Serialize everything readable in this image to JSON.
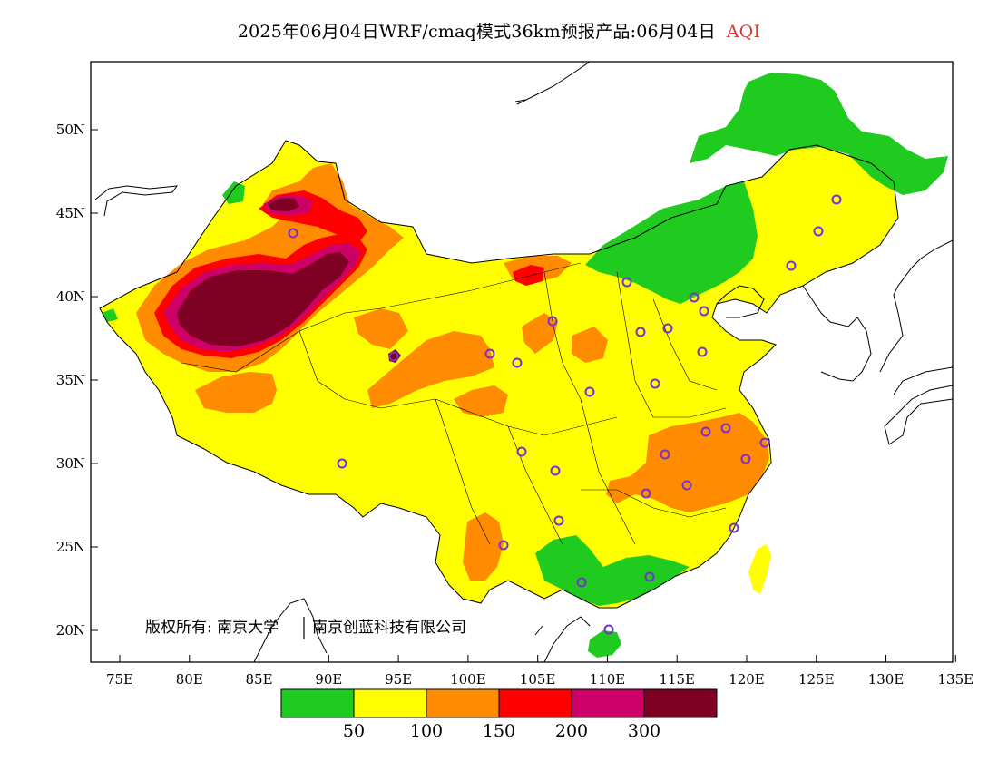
{
  "header": {
    "title": "2025年06月04日WRF/cmaq模式36km预报产品:06月04日",
    "product": "AQI",
    "product_color": "#d43c3c"
  },
  "map": {
    "projection": "lat-lon",
    "extent": {
      "lon": [
        73,
        135
      ],
      "lat": [
        18,
        54
      ]
    },
    "x_ticks": [
      "75E",
      "80E",
      "85E",
      "90E",
      "95E",
      "100E",
      "105E",
      "110E",
      "115E",
      "120E",
      "125E",
      "130E",
      "135E"
    ],
    "y_ticks": [
      "20N",
      "25N",
      "30N",
      "35N",
      "40N",
      "45N",
      "50N"
    ],
    "copyright": "版权所有: 南京大学",
    "copyright_org": "南京创蓝科技有限公司",
    "station_marker_color": "#7a2fd0"
  },
  "legend": {
    "colors": [
      "#1fcb1f",
      "#ffff00",
      "#ff8c00",
      "#ff0000",
      "#cc0066",
      "#7e0023"
    ],
    "labels": [
      "50",
      "100",
      "150",
      "200",
      "300"
    ],
    "categories": [
      "0-50",
      "50-100",
      "100-150",
      "150-200",
      "200-300",
      ">300"
    ]
  }
}
